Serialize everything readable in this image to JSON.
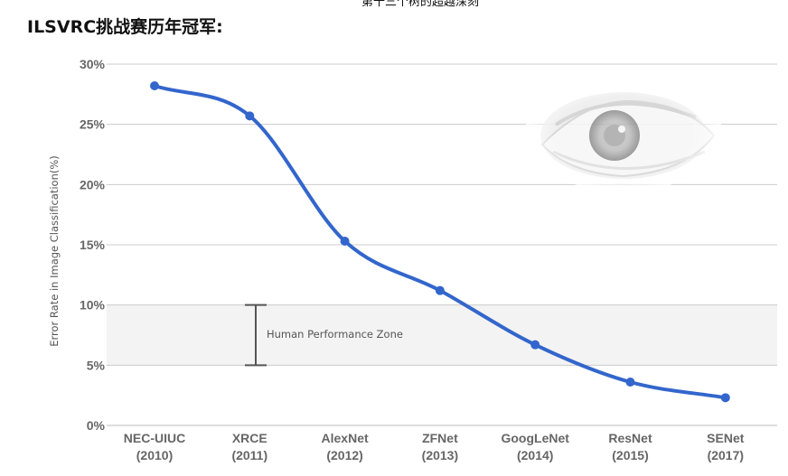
{
  "header": {
    "top_clip_text": "第十三个树的超越深刻",
    "title": "ILSVRC挑战赛历年冠军:"
  },
  "chart_data": {
    "type": "line",
    "title": "ILSVRC挑战赛历年冠军:",
    "ylabel": "Error Rate in Image Classification(%)",
    "xlabel": "",
    "ylim": [
      0,
      30
    ],
    "yticks": [
      "0%",
      "5%",
      "10%",
      "15%",
      "20%",
      "25%",
      "30%"
    ],
    "ytick_values": [
      0,
      5,
      10,
      15,
      20,
      25,
      30
    ],
    "grid": true,
    "categories": [
      {
        "name": "NEC-UIUC",
        "year": "(2010)"
      },
      {
        "name": "XRCE",
        "year": "(2011)"
      },
      {
        "name": "AlexNet",
        "year": "(2012)"
      },
      {
        "name": "ZFNet",
        "year": "(2013)"
      },
      {
        "name": "GoogLeNet",
        "year": "(2014)"
      },
      {
        "name": "ResNet",
        "year": "(2015)"
      },
      {
        "name": "SENet",
        "year": "(2017)"
      }
    ],
    "series": [
      {
        "values": [
          28.2,
          25.7,
          15.3,
          11.2,
          6.7,
          3.6,
          2.3
        ],
        "color": "#3366cc"
      }
    ],
    "annotation": {
      "label": "Human Performance Zone",
      "range": [
        5,
        10
      ],
      "shade_color": "#f3f3f3"
    },
    "decoration": "eye-image"
  }
}
